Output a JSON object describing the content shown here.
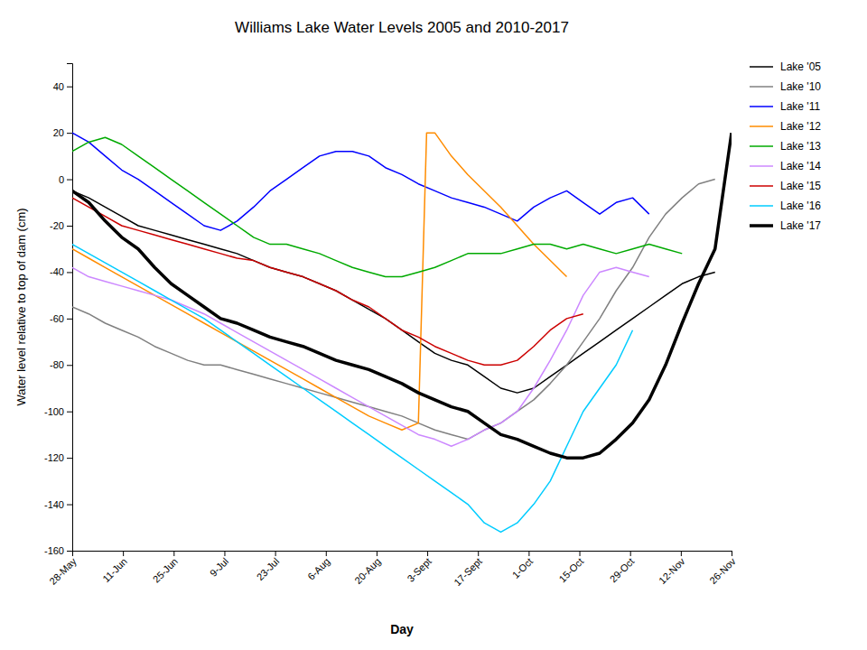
{
  "chart_data": {
    "type": "line",
    "title": "Williams Lake Water Levels 2005 and 2010-2017",
    "xlabel": "Day",
    "ylabel": "Water level relative to top of dam (cm)",
    "xlim": [
      0,
      80
    ],
    "xticks": [
      {
        "value": 0,
        "label": "28-May"
      },
      {
        "value": 6.153846153846154,
        "label": "11-Jun"
      },
      {
        "value": 12.307692307692308,
        "label": "25-Jun"
      },
      {
        "value": 18.461538461538463,
        "label": "9-Jul"
      },
      {
        "value": 24.615384615384617,
        "label": "23-Jul"
      },
      {
        "value": 30.76923076923077,
        "label": "6-Aug"
      },
      {
        "value": 36.92307692307692,
        "label": "20-Aug"
      },
      {
        "value": 43.07692307692308,
        "label": "3-Sept"
      },
      {
        "value": 49.23076923076923,
        "label": "17-Sept"
      },
      {
        "value": 55.38461538461539,
        "label": "1-Oct"
      },
      {
        "value": 61.53846153846154,
        "label": "15-Oct"
      },
      {
        "value": 67.6923076923077,
        "label": "29-Oct"
      },
      {
        "value": 73.84615384615384,
        "label": "12-Nov"
      },
      {
        "value": 80,
        "label": "26-Nov"
      }
    ],
    "ylim": [
      -160,
      50
    ],
    "yticks": [
      40,
      20,
      0,
      -20,
      -40,
      -60,
      -80,
      -100,
      -120,
      -140,
      -160
    ],
    "grid": false,
    "legend": "upper right",
    "series": [
      {
        "name": "Lake '05",
        "color": "#000000",
        "x": [
          0,
          2,
          4,
          6,
          8,
          10,
          12,
          14,
          16,
          18,
          20,
          22,
          24,
          26,
          28,
          30,
          32,
          34,
          36,
          38,
          40,
          42,
          44,
          46,
          48,
          50,
          52,
          54,
          56,
          58,
          60,
          62,
          64,
          66,
          68,
          70,
          72,
          74,
          76,
          78
        ],
        "values": [
          -5,
          -8,
          -12,
          -16,
          -20,
          -22,
          -24,
          -26,
          -28,
          -30,
          -32,
          -35,
          -38,
          -40,
          -42,
          -45,
          -48,
          -52,
          -56,
          -60,
          -65,
          -70,
          -75,
          -78,
          -80,
          -85,
          -90,
          -92,
          -90,
          -85,
          -80,
          -75,
          -70,
          -65,
          -60,
          -55,
          -50,
          -45,
          -42,
          -40
        ]
      },
      {
        "name": "Lake '10",
        "color": "#808080",
        "x": [
          0,
          2,
          4,
          6,
          8,
          10,
          12,
          14,
          16,
          18,
          20,
          22,
          24,
          26,
          28,
          30,
          32,
          34,
          36,
          38,
          40,
          42,
          44,
          46,
          48,
          50,
          52,
          54,
          56,
          58,
          60,
          62,
          64,
          66,
          68,
          70,
          72,
          74,
          76,
          78
        ],
        "values": [
          -55,
          -58,
          -62,
          -65,
          -68,
          -72,
          -75,
          -78,
          -80,
          -80,
          -82,
          -84,
          -86,
          -88,
          -90,
          -92,
          -94,
          -96,
          -98,
          -100,
          -102,
          -105,
          -108,
          -110,
          -112,
          -108,
          -105,
          -100,
          -95,
          -88,
          -80,
          -70,
          -60,
          -48,
          -38,
          -25,
          -15,
          -8,
          -2,
          0
        ]
      },
      {
        "name": "Lake '11",
        "color": "#0000FF",
        "x": [
          0,
          2,
          4,
          6,
          8,
          10,
          12,
          14,
          16,
          18,
          20,
          22,
          24,
          26,
          28,
          30,
          32,
          34,
          36,
          38,
          40,
          42,
          44,
          46,
          48,
          50,
          52,
          54,
          56,
          58,
          60,
          62,
          64,
          66,
          68,
          70
        ],
        "values": [
          20,
          16,
          10,
          4,
          0,
          -5,
          -10,
          -15,
          -20,
          -22,
          -18,
          -12,
          -5,
          0,
          5,
          10,
          12,
          12,
          10,
          5,
          2,
          -2,
          -5,
          -8,
          -10,
          -12,
          -15,
          -18,
          -12,
          -8,
          -5,
          -10,
          -15,
          -10,
          -8,
          -15
        ]
      },
      {
        "name": "Lake '12",
        "color": "#FF8C00",
        "x": [
          0,
          2,
          4,
          6,
          8,
          10,
          12,
          14,
          16,
          18,
          20,
          22,
          24,
          26,
          28,
          30,
          32,
          34,
          36,
          38,
          40,
          42,
          43,
          44,
          46,
          48,
          50,
          52,
          54,
          56,
          58,
          60
        ],
        "values": [
          -30,
          -34,
          -38,
          -42,
          -46,
          -50,
          -54,
          -58,
          -62,
          -66,
          -70,
          -74,
          -78,
          -82,
          -86,
          -90,
          -94,
          -98,
          -102,
          -105,
          -108,
          -105,
          20,
          20,
          10,
          2,
          -5,
          -12,
          -20,
          -28,
          -35,
          -42
        ]
      },
      {
        "name": "Lake '13",
        "color": "#00AA00",
        "x": [
          0,
          2,
          4,
          6,
          8,
          10,
          12,
          14,
          16,
          18,
          20,
          22,
          24,
          26,
          28,
          30,
          32,
          34,
          36,
          38,
          40,
          42,
          44,
          46,
          48,
          50,
          52,
          54,
          56,
          58,
          60,
          62,
          64,
          66,
          68,
          70,
          72,
          74
        ],
        "values": [
          12,
          16,
          18,
          15,
          10,
          5,
          0,
          -5,
          -10,
          -15,
          -20,
          -25,
          -28,
          -28,
          -30,
          -32,
          -35,
          -38,
          -40,
          -42,
          -42,
          -40,
          -38,
          -35,
          -32,
          -32,
          -32,
          -30,
          -28,
          -28,
          -30,
          -28,
          -30,
          -32,
          -30,
          -28,
          -30,
          -32
        ]
      },
      {
        "name": "Lake '14",
        "color": "#CC88FF",
        "x": [
          0,
          2,
          4,
          6,
          8,
          10,
          12,
          14,
          16,
          18,
          20,
          22,
          24,
          26,
          28,
          30,
          32,
          34,
          36,
          38,
          40,
          42,
          44,
          46,
          48,
          50,
          52,
          54,
          56,
          58,
          60,
          62,
          64,
          66,
          68,
          70
        ],
        "values": [
          -38,
          -42,
          -44,
          -46,
          -48,
          -50,
          -52,
          -55,
          -58,
          -62,
          -66,
          -70,
          -74,
          -78,
          -82,
          -86,
          -90,
          -94,
          -98,
          -102,
          -106,
          -110,
          -112,
          -115,
          -112,
          -108,
          -105,
          -100,
          -90,
          -78,
          -65,
          -50,
          -40,
          -38,
          -40,
          -42
        ]
      },
      {
        "name": "Lake '15",
        "color": "#CC0000",
        "x": [
          0,
          2,
          4,
          6,
          8,
          10,
          12,
          14,
          16,
          18,
          20,
          22,
          24,
          26,
          28,
          30,
          32,
          34,
          36,
          38,
          40,
          42,
          44,
          46,
          48,
          50,
          52,
          54,
          56,
          58,
          60,
          62
        ],
        "values": [
          -8,
          -12,
          -16,
          -20,
          -22,
          -24,
          -26,
          -28,
          -30,
          -32,
          -34,
          -35,
          -38,
          -40,
          -42,
          -45,
          -48,
          -52,
          -55,
          -60,
          -65,
          -68,
          -72,
          -75,
          -78,
          -80,
          -80,
          -78,
          -72,
          -65,
          -60,
          -58
        ]
      },
      {
        "name": "Lake '16",
        "color": "#00CCFF",
        "x": [
          0,
          2,
          4,
          6,
          8,
          10,
          12,
          14,
          16,
          18,
          20,
          22,
          24,
          26,
          28,
          30,
          32,
          34,
          36,
          38,
          40,
          42,
          44,
          46,
          48,
          50,
          52,
          54,
          56,
          58,
          60,
          62,
          64,
          66,
          68
        ],
        "values": [
          -28,
          -32,
          -36,
          -40,
          -44,
          -48,
          -52,
          -56,
          -60,
          -65,
          -70,
          -75,
          -80,
          -85,
          -90,
          -95,
          -100,
          -105,
          -110,
          -115,
          -120,
          -125,
          -130,
          -135,
          -140,
          -148,
          -152,
          -148,
          -140,
          -130,
          -115,
          -100,
          -90,
          -80,
          -65
        ]
      },
      {
        "name": "Lake '17",
        "color": "#000000",
        "line_style": "thick",
        "x": [
          0,
          2,
          4,
          6,
          8,
          10,
          12,
          14,
          16,
          18,
          20,
          22,
          24,
          26,
          28,
          30,
          32,
          34,
          36,
          38,
          40,
          42,
          44,
          46,
          48,
          50,
          52,
          54,
          56,
          58,
          60,
          62,
          64,
          66,
          68,
          70,
          72,
          74,
          76,
          78,
          80
        ],
        "values": [
          -5,
          -10,
          -18,
          -25,
          -30,
          -38,
          -45,
          -50,
          -55,
          -60,
          -62,
          -65,
          -68,
          -70,
          -72,
          -75,
          -78,
          -80,
          -82,
          -85,
          -88,
          -92,
          -95,
          -98,
          -100,
          -105,
          -110,
          -112,
          -115,
          -118,
          -120,
          -120,
          -118,
          -112,
          -105,
          -95,
          -80,
          -62,
          -45,
          -30,
          20
        ]
      }
    ]
  }
}
